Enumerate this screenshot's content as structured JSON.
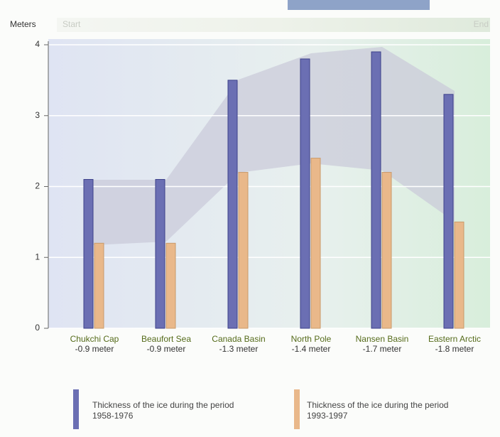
{
  "chart_data": {
    "type": "bar",
    "y_label": "Meters",
    "start_label": "Start",
    "end_label": "End",
    "categories": [
      "Chukchi Cap",
      "Beaufort Sea",
      "Canada Basin",
      "North Pole",
      "Nansen Basin",
      "Eastern Arctic"
    ],
    "annotations": [
      "-0.9 meter",
      "-0.9 meter",
      "-1.3 meter",
      "-1.4 meter",
      "-1.7 meter",
      "-1.8 meter"
    ],
    "series": [
      {
        "name": "Thickness of the ice during the period 1958-1976",
        "color": "#6b6fb3",
        "values": [
          2.1,
          2.1,
          3.5,
          3.8,
          3.9,
          3.3
        ]
      },
      {
        "name": "Thickness of the ice during the period 1993-1997",
        "color": "#e9b88a",
        "values": [
          1.2,
          1.2,
          2.2,
          2.4,
          2.2,
          1.5
        ]
      }
    ],
    "ylim": [
      0,
      4
    ],
    "yticks": [
      0,
      1,
      2,
      3,
      4
    ],
    "grid": true
  }
}
